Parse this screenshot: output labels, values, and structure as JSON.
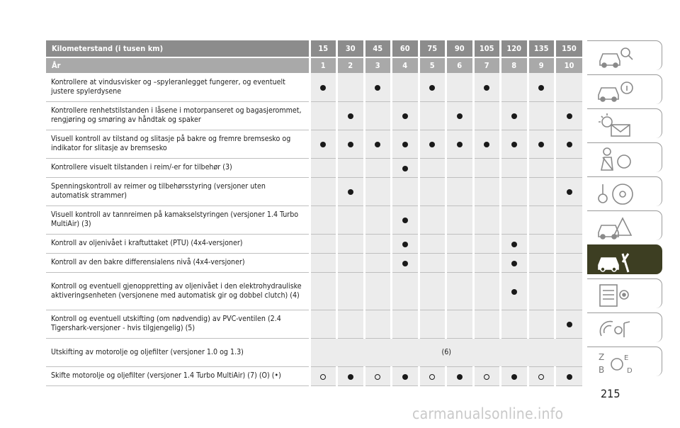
{
  "table": {
    "header_km_label": "Kilometerstand (i tusen km)",
    "header_year_label": "År",
    "km": [
      "15",
      "30",
      "45",
      "60",
      "75",
      "90",
      "105",
      "120",
      "135",
      "150"
    ],
    "years": [
      "1",
      "2",
      "3",
      "4",
      "5",
      "6",
      "7",
      "8",
      "9",
      "10"
    ],
    "rows": [
      {
        "text": "Kontrollere at vindusvisker og –spyleranlegget fungerer, og eventuelt justere spylerdysene",
        "marks": [
          "dot",
          "",
          "dot",
          "",
          "dot",
          "",
          "dot",
          "",
          "dot",
          ""
        ]
      },
      {
        "text": "Kontrollere renhetstilstanden i låsene i motorpanseret og bagasjerommet, rengjøring og smøring av håndtak og spaker",
        "marks": [
          "",
          "dot",
          "",
          "dot",
          "",
          "dot",
          "",
          "dot",
          "",
          "dot"
        ]
      },
      {
        "text": "Visuell kontroll av tilstand og slitasje på bakre og fremre bremsesko og indikator for slitasje av bremsesko",
        "marks": [
          "dot",
          "dot",
          "dot",
          "dot",
          "dot",
          "dot",
          "dot",
          "dot",
          "dot",
          "dot"
        ]
      },
      {
        "text": "Kontrollere visuelt tilstanden i reim/-er for tilbehør (3)",
        "marks": [
          "",
          "",
          "",
          "dot",
          "",
          "",
          "",
          "",
          "",
          ""
        ]
      },
      {
        "text": "Spenningskontroll av reimer og tilbehørsstyring (versjoner uten automatisk strammer)",
        "marks": [
          "",
          "dot",
          "",
          "",
          "",
          "",
          "",
          "",
          "",
          "dot"
        ]
      },
      {
        "text": "Visuell kontroll av tannreimen på kamakselstyringen (versjoner 1.4 Turbo MultiAir) (3)",
        "marks": [
          "",
          "",
          "",
          "dot",
          "",
          "",
          "",
          "",
          "",
          ""
        ]
      },
      {
        "text": "Kontroll av oljenivået i kraftuttaket (PTU) (4x4-versjoner)",
        "marks": [
          "",
          "",
          "",
          "dot",
          "",
          "",
          "",
          "dot",
          "",
          ""
        ]
      },
      {
        "text": "Kontroll av den bakre differensialens nivå (4x4-versjoner)",
        "marks": [
          "",
          "",
          "",
          "dot",
          "",
          "",
          "",
          "dot",
          "",
          ""
        ]
      },
      {
        "text": "Kontroll og eventuell gjenoppretting av oljenivået i den elektrohydrauliske aktiveringsenheten (versjonene med automatisk gir og dobbel clutch) (4)",
        "marks": [
          "",
          "",
          "",
          "",
          "",
          "",
          "",
          "dot",
          "",
          ""
        ]
      },
      {
        "text": "Kontroll og eventuell utskifting (om nødvendig) av PVC-ventilen (2.4 Tigershark-versjoner - hvis tilgjengelig) (5)",
        "marks": [
          "",
          "",
          "",
          "",
          "",
          "",
          "",
          "",
          "",
          "dot"
        ]
      },
      {
        "text": "Utskifting av motorolje og oljefilter (versjoner 1.0 og 1.3)",
        "span_text": "(6)"
      },
      {
        "text": "Skifte motorolje og oljefilter (versjoner 1.4 Turbo MultiAir) (7) (O) (•)",
        "marks": [
          "ring",
          "dot",
          "ring",
          "dot",
          "ring",
          "dot",
          "ring",
          "dot",
          "ring",
          "dot"
        ]
      }
    ]
  },
  "sidebar": {
    "tabs": [
      {
        "icon": "car-search-icon",
        "active": false
      },
      {
        "icon": "car-info-icon",
        "active": false
      },
      {
        "icon": "warning-lights-icon",
        "active": false
      },
      {
        "icon": "seatbelt-airbag-icon",
        "active": false
      },
      {
        "icon": "key-steering-icon",
        "active": false
      },
      {
        "icon": "emergency-car-icon",
        "active": false
      },
      {
        "icon": "car-maintenance-icon",
        "active": true
      },
      {
        "icon": "specifications-icon",
        "active": false
      },
      {
        "icon": "multimedia-icon",
        "active": false
      },
      {
        "icon": "index-icon",
        "active": false
      }
    ]
  },
  "page_number": "215",
  "watermark": "carmanualsonline.info",
  "colors": {
    "header_dark": "#8c8c8c",
    "header_light": "#a9a9a9",
    "cell_bg": "#ececec",
    "active_tab": "#3d3e22"
  }
}
